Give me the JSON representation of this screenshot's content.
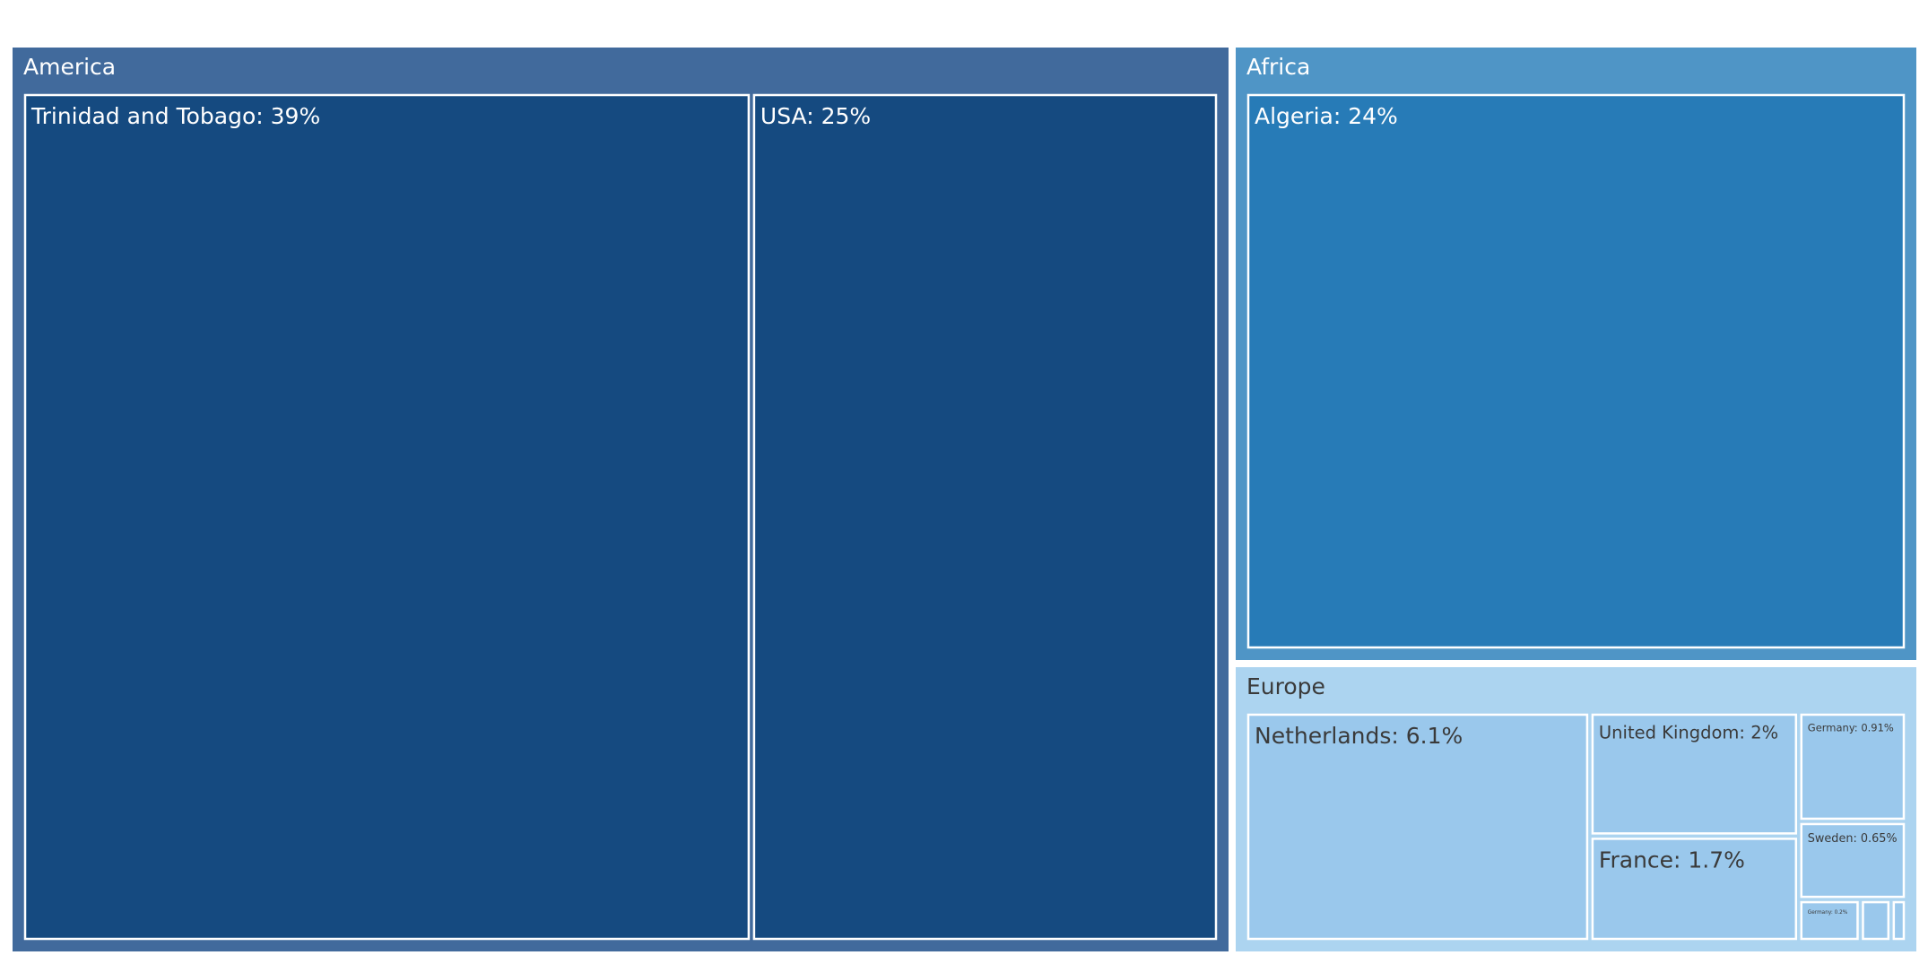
{
  "chart_data": {
    "type": "treemap",
    "groups": [
      {
        "name": "America",
        "color": "#416a9c",
        "text_color": "#ffffff",
        "tile_color": "#154a80",
        "items": [
          {
            "name": "Trinidad and Tobago",
            "value": 39,
            "label": "Trinidad and Tobago: 39%"
          },
          {
            "name": "USA",
            "value": 25,
            "label": "USA: 25%"
          }
        ]
      },
      {
        "name": "Africa",
        "color": "#4f95c6",
        "text_color": "#ffffff",
        "tile_color": "#277bb7",
        "items": [
          {
            "name": "Algeria",
            "value": 24,
            "label": "Algeria: 24%"
          }
        ]
      },
      {
        "name": "Europe",
        "color": "#acd4f0",
        "text_color": "#3a3a3a",
        "tile_color": "#9ac8ec",
        "items": [
          {
            "name": "Netherlands",
            "value": 6.1,
            "label": "Netherlands: 6.1%"
          },
          {
            "name": "United Kingdom",
            "value": 2,
            "label": "United Kingdom: 2%"
          },
          {
            "name": "France",
            "value": 1.7,
            "label": "France: 1.7%"
          },
          {
            "name": "Germany",
            "value": 0.91,
            "label": "Germany: 0.91%"
          },
          {
            "name": "Sweden",
            "value": 0.65,
            "label": "Sweden: 0.65%"
          },
          {
            "name": "Germany",
            "value": 0.2,
            "label": "Germany: 0.2%"
          },
          {
            "name": "",
            "value": 0.1,
            "label": ""
          },
          {
            "name": "",
            "value": 0.05,
            "label": ""
          }
        ]
      }
    ]
  }
}
